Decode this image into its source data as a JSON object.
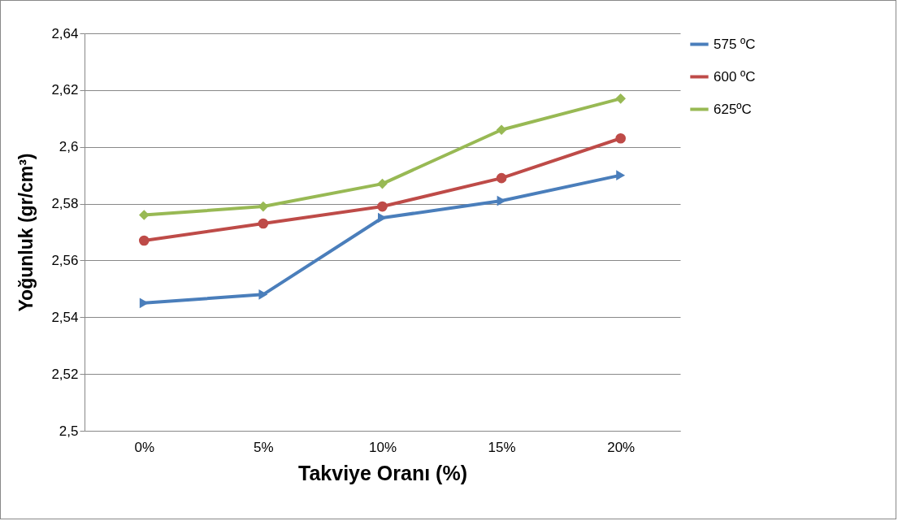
{
  "chart_data": {
    "type": "line",
    "xlabel": "Takviye Oranı (%)",
    "ylabel": "Yoğunluk (gr/cm³)",
    "categories": [
      "0%",
      "5%",
      "10%",
      "15%",
      "20%"
    ],
    "series": [
      {
        "name": "575 ºC",
        "color": "#4a7ebb",
        "marker": "triangle",
        "values": [
          2.545,
          2.548,
          2.575,
          2.581,
          2.59
        ]
      },
      {
        "name": "600 ºC",
        "color": "#be4b48",
        "marker": "circle",
        "values": [
          2.567,
          2.573,
          2.579,
          2.589,
          2.603
        ]
      },
      {
        "name": "625ºC",
        "color": "#98b954",
        "marker": "diamond",
        "values": [
          2.576,
          2.579,
          2.587,
          2.606,
          2.617
        ]
      }
    ],
    "ylim": [
      2.5,
      2.64
    ],
    "yticks": [
      {
        "value": 2.5,
        "label": "2,5"
      },
      {
        "value": 2.52,
        "label": "2,52"
      },
      {
        "value": 2.54,
        "label": "2,54"
      },
      {
        "value": 2.56,
        "label": "2,56"
      },
      {
        "value": 2.58,
        "label": "2,58"
      },
      {
        "value": 2.6,
        "label": "2,6"
      },
      {
        "value": 2.62,
        "label": "2,62"
      },
      {
        "value": 2.64,
        "label": "2,64"
      }
    ],
    "grid": "y",
    "legend": "right"
  }
}
